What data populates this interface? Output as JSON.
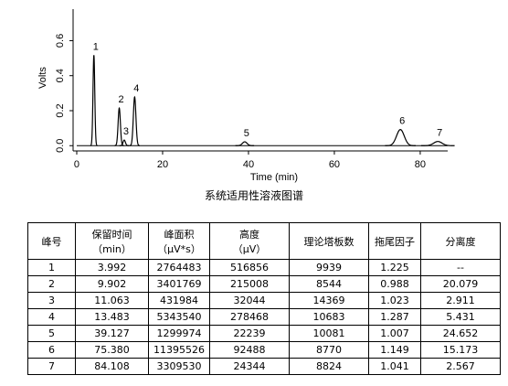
{
  "chart_data": {
    "type": "line",
    "xlabel": "Time (min)",
    "ylabel": "Volts",
    "xlim": [
      -0.85,
      86.4
    ],
    "xticks": [
      0,
      20,
      40,
      60,
      80
    ],
    "ylim": [
      -0.03,
      0.78
    ],
    "yticks": [
      {
        "value": 0,
        "label": "0.0"
      },
      {
        "value": 0.2,
        "label": "0.2"
      },
      {
        "value": 0.4,
        "label": "0.4"
      },
      {
        "value": 0.6,
        "label": "0.6"
      }
    ],
    "color": "#000000",
    "peak_labels": [
      "1",
      "2",
      "3",
      "4",
      "5",
      "6",
      "7"
    ],
    "x": [
      3.992,
      9.902,
      11.063,
      13.483,
      39.127,
      75.38,
      84.108
    ],
    "values": [
      0.517,
      0.215,
      0.032,
      0.278,
      0.022,
      0.092,
      0.024
    ]
  },
  "caption": "系统适用性溶液图谱",
  "table": {
    "header": [
      [
        "峰号"
      ],
      [
        "保留时间",
        "（min）"
      ],
      [
        "峰面积",
        "（µV*s）"
      ],
      [
        "高度",
        "（µV）"
      ],
      [
        "理论塔板数"
      ],
      [
        "拖尾因子"
      ],
      [
        "分离度"
      ]
    ],
    "rows": [
      [
        "1",
        "3.992",
        "2764483",
        "516856",
        "9939",
        "1.225",
        "--"
      ],
      [
        "2",
        "9.902",
        "3401769",
        "215008",
        "8544",
        "0.988",
        "20.079"
      ],
      [
        "3",
        "11.063",
        "431984",
        "32044",
        "14369",
        "1.023",
        "2.911"
      ],
      [
        "4",
        "13.483",
        "5343540",
        "278468",
        "10683",
        "1.287",
        "5.431"
      ],
      [
        "5",
        "39.127",
        "1299974",
        "22239",
        "10081",
        "1.007",
        "24.652"
      ],
      [
        "6",
        "75.380",
        "11395526",
        "92488",
        "8770",
        "1.149",
        "15.173"
      ],
      [
        "7",
        "84.108",
        "3309530",
        "24344",
        "8824",
        "1.041",
        "2.567"
      ]
    ]
  }
}
